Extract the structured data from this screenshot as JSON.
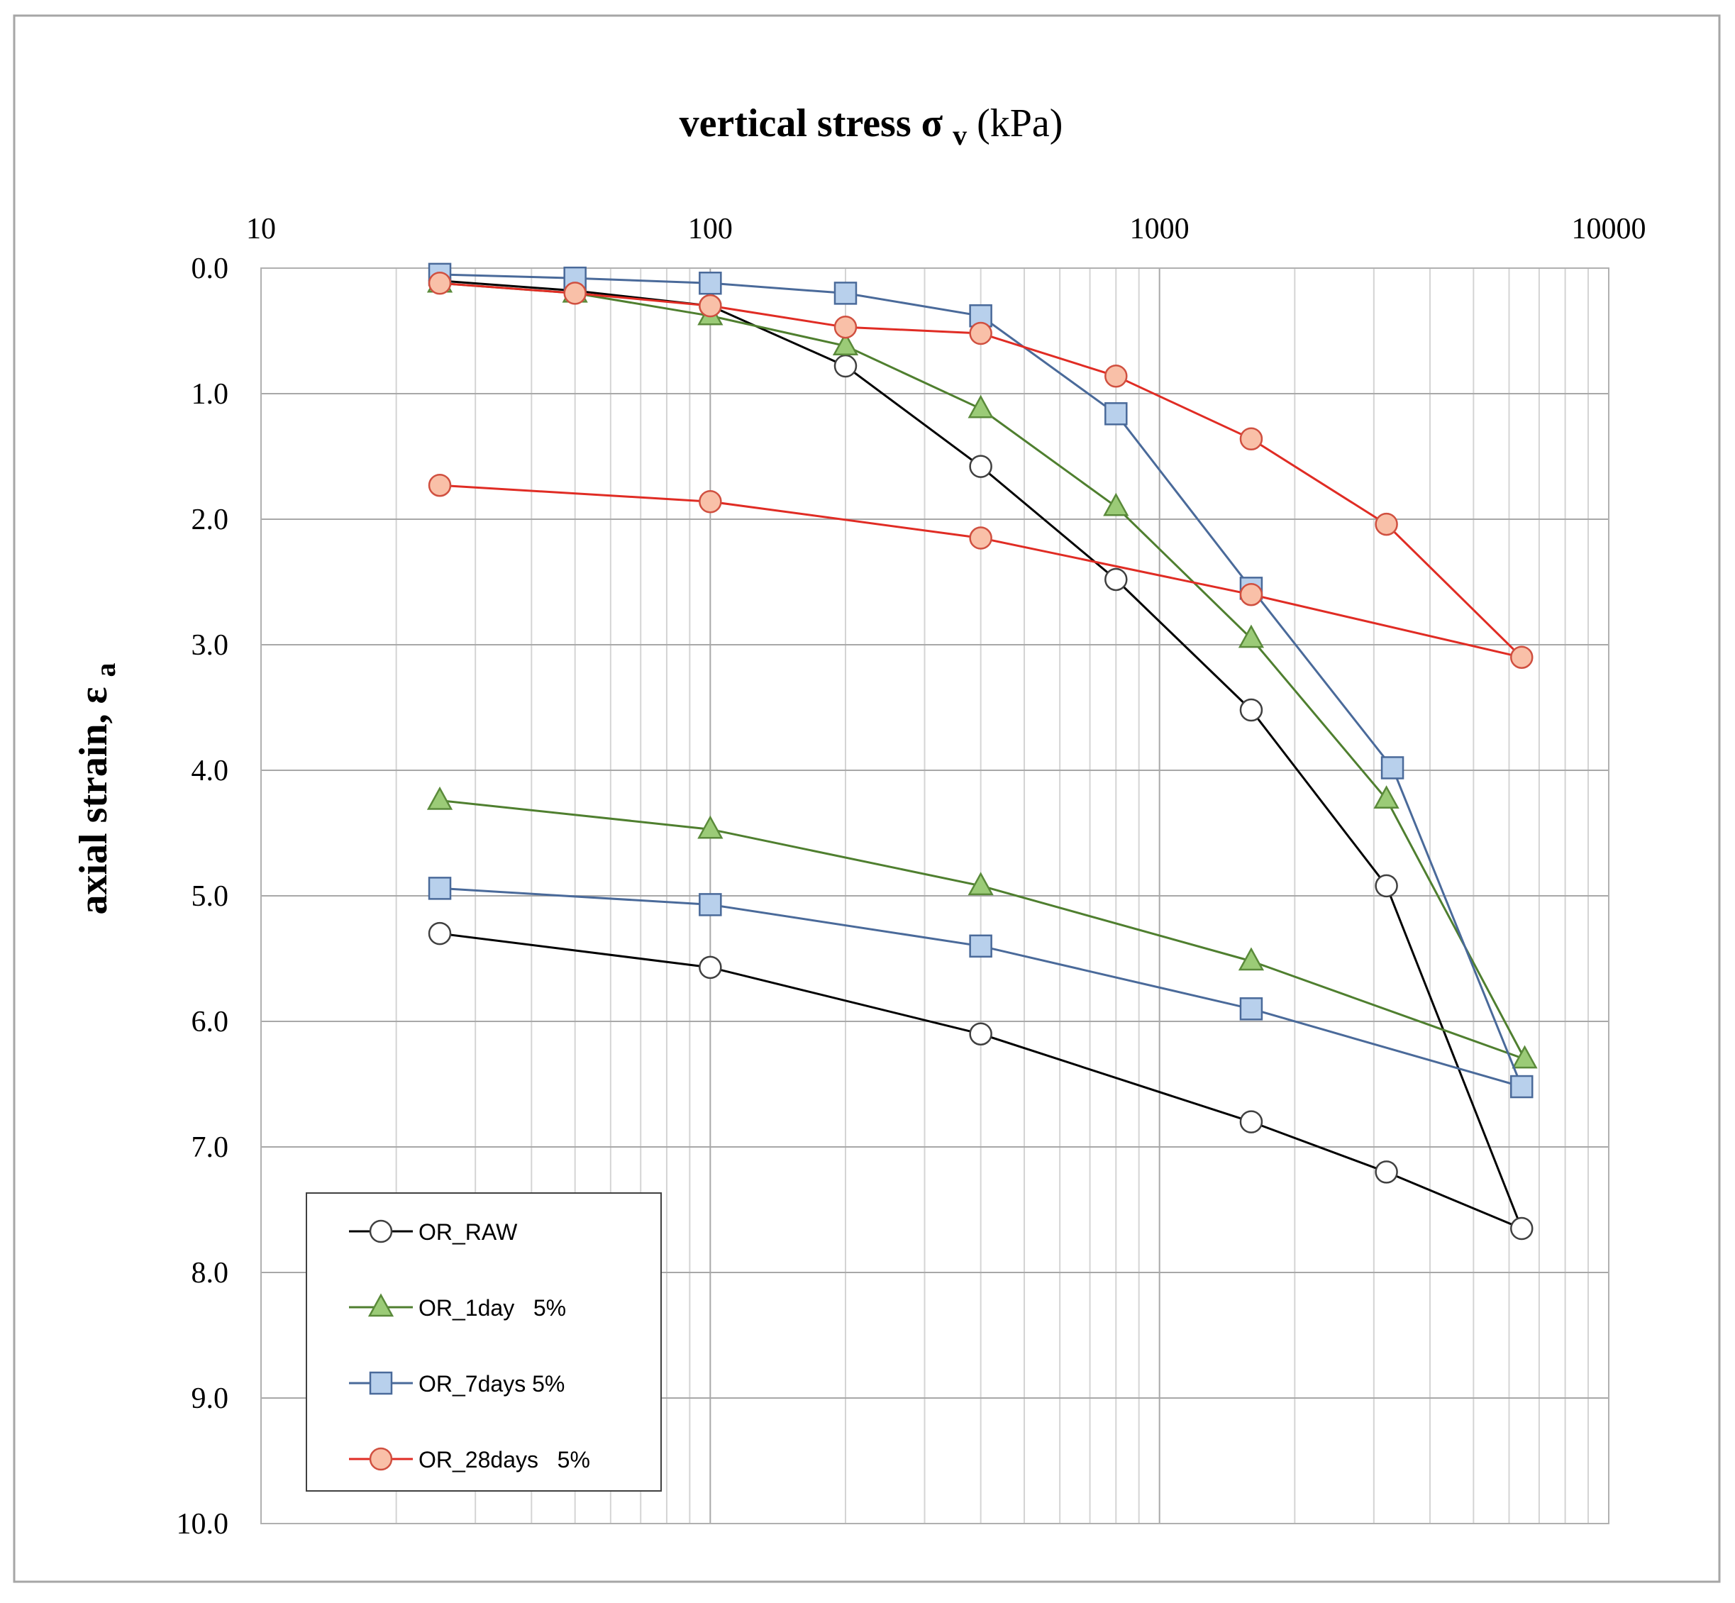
{
  "chart_data": {
    "type": "line",
    "title": {
      "main": "vertical stress ",
      "symbol": "σ",
      "subscript": "v",
      "unit": " (kPa)"
    },
    "ylabel": {
      "main": "axial strain, ",
      "symbol": "ε",
      "subscript": "a"
    },
    "x_scale": "log",
    "xlim": [
      10,
      10000
    ],
    "ylim": [
      0,
      10
    ],
    "y_inverted": true,
    "x_axis_position": "top",
    "x_ticks": [
      10,
      100,
      1000,
      10000
    ],
    "x_tick_labels": [
      "10",
      "100",
      "1000",
      "10000"
    ],
    "y_ticks": [
      0,
      1,
      2,
      3,
      4,
      5,
      6,
      7,
      8,
      9,
      10
    ],
    "y_tick_labels": [
      "0.0",
      "1.0",
      "2.0",
      "3.0",
      "4.0",
      "5.0",
      "6.0",
      "7.0",
      "8.0",
      "9.0",
      "10.0"
    ],
    "grid": true,
    "legend_position": "bottom-left",
    "series": [
      {
        "name": "OR_RAW",
        "color": "#000000",
        "marker": "circle",
        "marker_fill": "#ffffff",
        "marker_stroke": "#404040",
        "x": [
          25,
          50,
          100,
          200,
          400,
          800,
          1600,
          3200,
          6400,
          3200,
          1600,
          400,
          100,
          25
        ],
        "y": [
          0.1,
          0.18,
          0.3,
          0.78,
          1.58,
          2.48,
          3.52,
          4.92,
          7.65,
          7.2,
          6.8,
          6.1,
          5.57,
          5.3
        ]
      },
      {
        "name": "OR_1day   5%",
        "color": "#4f7f2f",
        "marker": "triangle",
        "marker_fill": "#9bcb77",
        "marker_stroke": "#5a8a3a",
        "x": [
          25,
          50,
          100,
          200,
          400,
          800,
          1600,
          3200,
          6500,
          1600,
          400,
          100,
          25
        ],
        "y": [
          0.12,
          0.2,
          0.38,
          0.62,
          1.12,
          1.9,
          2.95,
          4.23,
          6.3,
          5.52,
          4.92,
          4.47,
          4.24
        ]
      },
      {
        "name": "OR_7days 5%",
        "color": "#4a6a9a",
        "marker": "square",
        "marker_fill": "#b8d0ec",
        "marker_stroke": "#4a6a9a",
        "x": [
          25,
          50,
          100,
          200,
          400,
          800,
          1600,
          3300,
          6400,
          1600,
          400,
          100,
          25
        ],
        "y": [
          0.05,
          0.08,
          0.12,
          0.2,
          0.38,
          1.16,
          2.55,
          3.98,
          6.52,
          5.9,
          5.4,
          5.07,
          4.94
        ]
      },
      {
        "name": "OR_28days   5%",
        "color": "#e02c24",
        "marker": "circle",
        "marker_fill": "#f9c0a8",
        "marker_stroke": "#d05040",
        "x": [
          25,
          50,
          100,
          200,
          400,
          800,
          1600,
          3200,
          6400,
          1600,
          400,
          100,
          25
        ],
        "y": [
          0.12,
          0.2,
          0.3,
          0.47,
          0.52,
          0.86,
          1.36,
          2.04,
          3.1,
          2.6,
          2.15,
          1.86,
          1.73
        ]
      }
    ]
  }
}
